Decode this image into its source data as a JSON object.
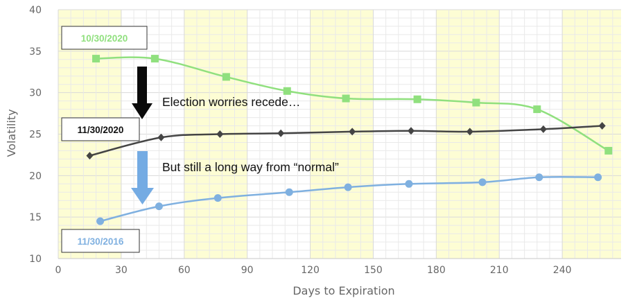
{
  "chart_data": {
    "type": "line",
    "xlabel": "Days to Expiration",
    "ylabel": "Volatility",
    "xlim": [
      0,
      268
    ],
    "ylim": [
      10,
      40
    ],
    "x_ticks": [
      0,
      30,
      60,
      90,
      120,
      150,
      180,
      210,
      240
    ],
    "y_ticks": [
      10,
      15,
      20,
      25,
      30,
      35,
      40
    ],
    "grid": true,
    "shaded_bands": [
      [
        0,
        30
      ],
      [
        60,
        90
      ],
      [
        120,
        150
      ],
      [
        180,
        210
      ],
      [
        240,
        268
      ]
    ],
    "series": [
      {
        "name": "10/30/2020",
        "color": "#90e07e",
        "marker": "square",
        "x": [
          18,
          46,
          80,
          109,
          137,
          171,
          199,
          228,
          262
        ],
        "y": [
          34.1,
          34.1,
          31.9,
          30.2,
          29.3,
          29.2,
          28.8,
          28.0,
          23.0
        ]
      },
      {
        "name": "11/30/2020",
        "color": "#444444",
        "marker": "diamond",
        "x": [
          15,
          49,
          77,
          106,
          140,
          168,
          196,
          231,
          259
        ],
        "y": [
          22.4,
          24.6,
          25.0,
          25.1,
          25.3,
          25.4,
          25.3,
          25.6,
          26.0
        ]
      },
      {
        "name": "11/30/2016",
        "color": "#7fb0e0",
        "marker": "circle",
        "x": [
          20,
          48,
          76,
          110,
          138,
          167,
          202,
          229,
          257
        ],
        "y": [
          14.5,
          16.3,
          17.3,
          18.0,
          18.6,
          19.0,
          19.2,
          19.8,
          19.8
        ]
      }
    ],
    "annotations": [
      {
        "text": "Election worries recede…"
      },
      {
        "text": "But still a long way from “normal”"
      }
    ]
  }
}
